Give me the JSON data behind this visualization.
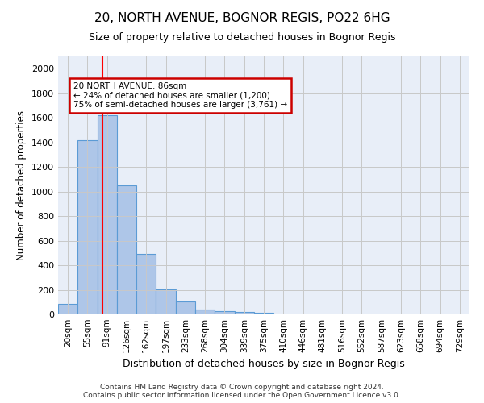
{
  "title": "20, NORTH AVENUE, BOGNOR REGIS, PO22 6HG",
  "subtitle": "Size of property relative to detached houses in Bognor Regis",
  "xlabel": "Distribution of detached houses by size in Bognor Regis",
  "ylabel": "Number of detached properties",
  "bar_color": "#aec6e8",
  "bar_edge_color": "#5b9bd5",
  "bg_color": "#e8eef8",
  "grid_color": "#c8c8c8",
  "categories": [
    "20sqm",
    "55sqm",
    "91sqm",
    "126sqm",
    "162sqm",
    "197sqm",
    "233sqm",
    "268sqm",
    "304sqm",
    "339sqm",
    "375sqm",
    "410sqm",
    "446sqm",
    "481sqm",
    "516sqm",
    "552sqm",
    "587sqm",
    "623sqm",
    "658sqm",
    "694sqm",
    "729sqm"
  ],
  "values": [
    85,
    1420,
    1620,
    1050,
    490,
    205,
    105,
    40,
    28,
    20,
    15,
    0,
    0,
    0,
    0,
    0,
    0,
    0,
    0,
    0,
    0
  ],
  "red_line_x": 1.75,
  "ylim": [
    0,
    2100
  ],
  "yticks": [
    0,
    200,
    400,
    600,
    800,
    1000,
    1200,
    1400,
    1600,
    1800,
    2000
  ],
  "annotation_text": "20 NORTH AVENUE: 86sqm\n← 24% of detached houses are smaller (1,200)\n75% of semi-detached houses are larger (3,761) →",
  "annotation_box_color": "#ffffff",
  "annotation_box_edge": "#cc0000",
  "footer_line1": "Contains HM Land Registry data © Crown copyright and database right 2024.",
  "footer_line2": "Contains public sector information licensed under the Open Government Licence v3.0."
}
